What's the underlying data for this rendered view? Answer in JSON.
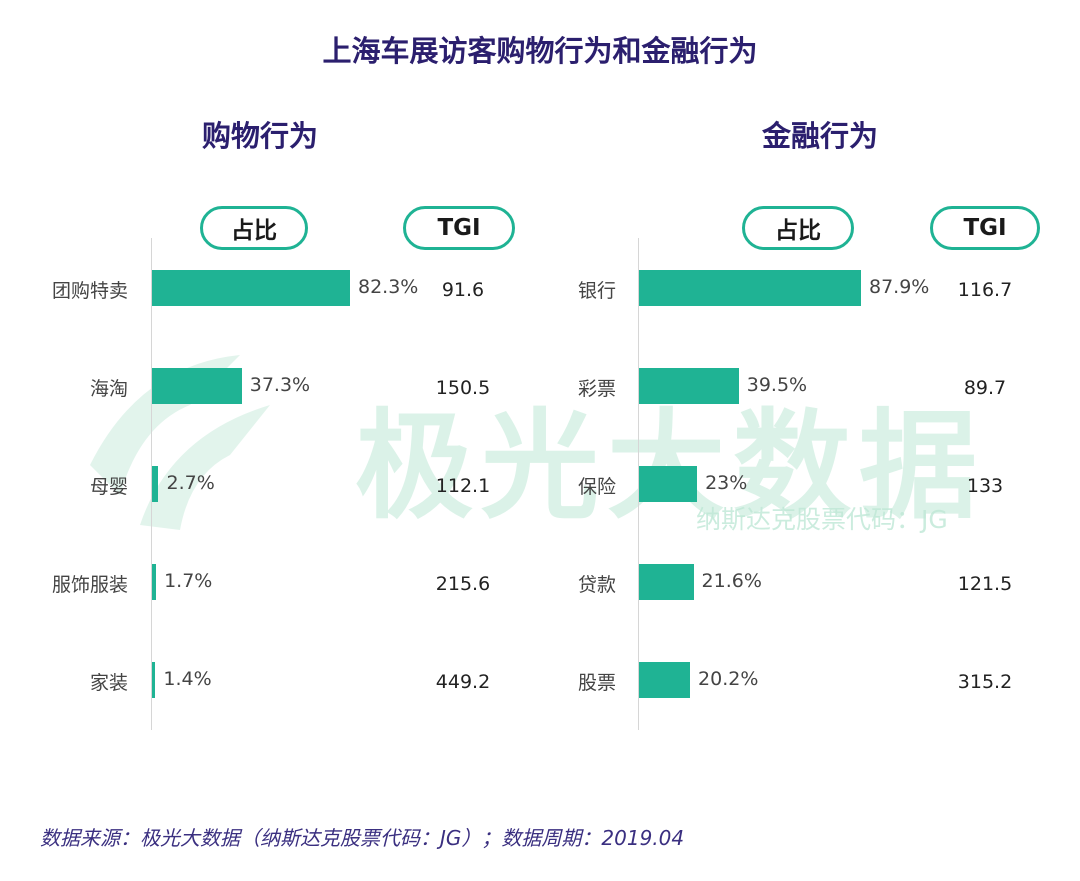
{
  "title": "上海车展访客购物行为和金融行为",
  "watermark": {
    "brand": "极光大数据",
    "sub": "纳斯达克股票代码：JG"
  },
  "footer": "数据来源：极光大数据（纳斯达克股票代码：JG）；数据周期：2019.04",
  "colors": {
    "bar": "#1fb394",
    "title": "#2b1f6e"
  },
  "chart_data": [
    {
      "type": "bar",
      "orientation": "horizontal",
      "title": "购物行为",
      "share_header": "占比",
      "tgi_header": "TGI",
      "categories": [
        "团购特卖",
        "海淘",
        "母婴",
        "服饰服装",
        "家装"
      ],
      "values": [
        82.3,
        37.3,
        2.7,
        1.7,
        1.4
      ],
      "labels": [
        "82.3%",
        "37.3%",
        "2.7%",
        "1.7%",
        "1.4%"
      ],
      "tgi": [
        "91.6",
        "150.5",
        "112.1",
        "215.6",
        "449.2"
      ],
      "unit": "%"
    },
    {
      "type": "bar",
      "orientation": "horizontal",
      "title": "金融行为",
      "share_header": "占比",
      "tgi_header": "TGI",
      "categories": [
        "银行",
        "彩票",
        "保险",
        "贷款",
        "股票"
      ],
      "values": [
        87.9,
        39.5,
        23,
        21.6,
        20.2
      ],
      "labels": [
        "87.9%",
        "39.5%",
        "23%",
        "21.6%",
        "20.2%"
      ],
      "tgi": [
        "116.7",
        "89.7",
        "133",
        "121.5",
        "315.2"
      ],
      "unit": "%"
    }
  ]
}
